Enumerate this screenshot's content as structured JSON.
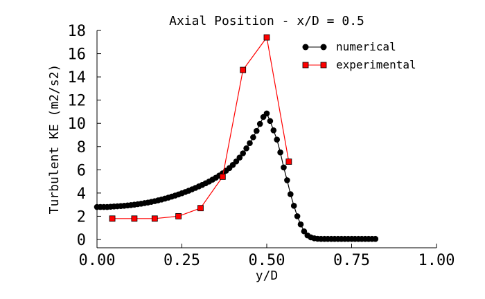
{
  "chart_data": {
    "type": "line",
    "title": "Axial Position - x/D = 0.5",
    "xlabel": "y/D",
    "ylabel": "Turbulent KE (m2/s2)",
    "xlim": [
      0.0,
      1.0
    ],
    "ylim": [
      0,
      18
    ],
    "x_ticks": [
      "0.00",
      "0.25",
      "0.50",
      "0.75",
      "1.00"
    ],
    "y_ticks": [
      "0",
      "2",
      "4",
      "6",
      "8",
      "10",
      "12",
      "14",
      "16",
      "18"
    ],
    "grid": false,
    "legend_position": "top-right",
    "series": [
      {
        "name": "numerical",
        "color": "#000000",
        "marker": "circle",
        "x": [
          0.0,
          0.01,
          0.02,
          0.03,
          0.04,
          0.05,
          0.06,
          0.07,
          0.08,
          0.09,
          0.1,
          0.11,
          0.12,
          0.13,
          0.14,
          0.15,
          0.16,
          0.17,
          0.18,
          0.19,
          0.2,
          0.21,
          0.22,
          0.23,
          0.24,
          0.25,
          0.26,
          0.27,
          0.28,
          0.29,
          0.3,
          0.31,
          0.32,
          0.33,
          0.34,
          0.35,
          0.36,
          0.37,
          0.38,
          0.39,
          0.4,
          0.41,
          0.42,
          0.43,
          0.44,
          0.45,
          0.46,
          0.47,
          0.48,
          0.49,
          0.5,
          0.51,
          0.52,
          0.53,
          0.54,
          0.55,
          0.56,
          0.57,
          0.58,
          0.59,
          0.6,
          0.61,
          0.62,
          0.63,
          0.64,
          0.65,
          0.66,
          0.67,
          0.68,
          0.69,
          0.7,
          0.71,
          0.72,
          0.73,
          0.74,
          0.75,
          0.76,
          0.77,
          0.78,
          0.79,
          0.8,
          0.81,
          0.82
        ],
        "y": [
          2.8,
          2.8,
          2.8,
          2.8,
          2.82,
          2.84,
          2.86,
          2.88,
          2.9,
          2.93,
          2.96,
          3.0,
          3.04,
          3.08,
          3.13,
          3.18,
          3.24,
          3.3,
          3.37,
          3.44,
          3.52,
          3.6,
          3.69,
          3.78,
          3.88,
          3.98,
          4.09,
          4.2,
          4.32,
          4.44,
          4.57,
          4.7,
          4.84,
          4.99,
          5.15,
          5.32,
          5.5,
          5.7,
          5.92,
          6.15,
          6.42,
          6.72,
          7.05,
          7.42,
          7.85,
          8.3,
          8.8,
          9.35,
          9.95,
          10.55,
          10.85,
          10.2,
          9.4,
          8.6,
          7.5,
          6.2,
          5.1,
          3.9,
          2.9,
          2.0,
          1.3,
          0.7,
          0.35,
          0.18,
          0.1,
          0.06,
          0.05,
          0.05,
          0.05,
          0.05,
          0.05,
          0.05,
          0.05,
          0.05,
          0.05,
          0.05,
          0.05,
          0.05,
          0.05,
          0.05,
          0.05,
          0.05,
          0.05
        ]
      },
      {
        "name": "experimental",
        "color": "#ff0000",
        "marker": "square",
        "x": [
          0.045,
          0.11,
          0.17,
          0.24,
          0.305,
          0.37,
          0.43,
          0.5,
          0.565
        ],
        "y": [
          1.8,
          1.8,
          1.8,
          2.0,
          2.7,
          5.4,
          14.6,
          17.4,
          6.7
        ]
      }
    ]
  }
}
